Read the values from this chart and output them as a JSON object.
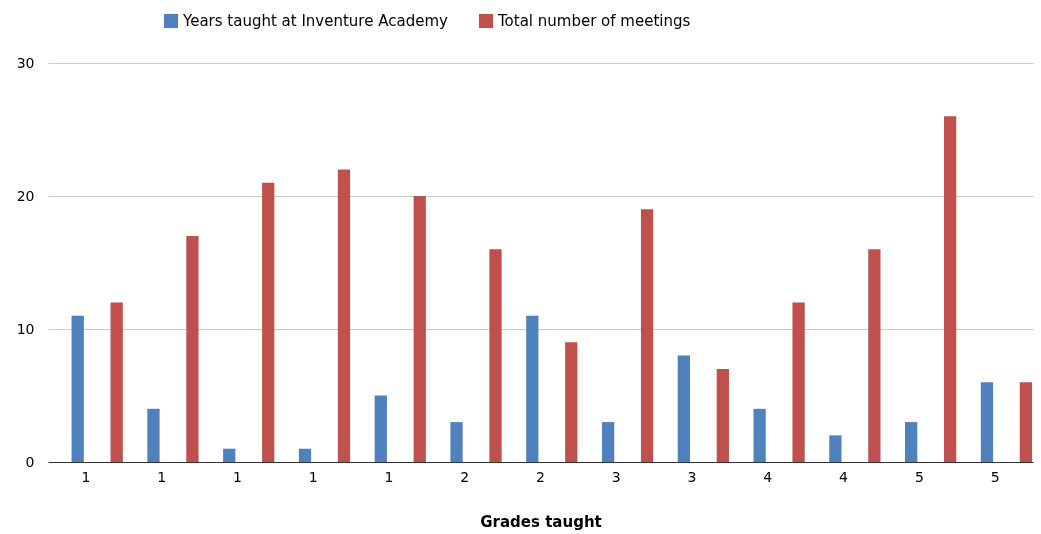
{
  "chart_data": {
    "type": "bar",
    "xlabel": "Grades taught",
    "categories": [
      "1",
      "1",
      "1",
      "1",
      "1",
      "2",
      "2",
      "3",
      "3",
      "4",
      "4",
      "5",
      "5"
    ],
    "series": [
      {
        "name": "Years taught at Inventure Academy",
        "color": "#4f81bd",
        "values": [
          11,
          4,
          1,
          1,
          5,
          3,
          11,
          3,
          8,
          4,
          2,
          3,
          6
        ]
      },
      {
        "name": "Total number of meetings",
        "color": "#c0504d",
        "values": [
          12,
          17,
          21,
          22,
          20,
          16,
          9,
          19,
          7,
          12,
          16,
          26,
          6
        ]
      }
    ],
    "ylim": [
      0,
      30
    ],
    "yticks": [
      0,
      10,
      20,
      30
    ],
    "grid": "y",
    "legend": "top"
  }
}
